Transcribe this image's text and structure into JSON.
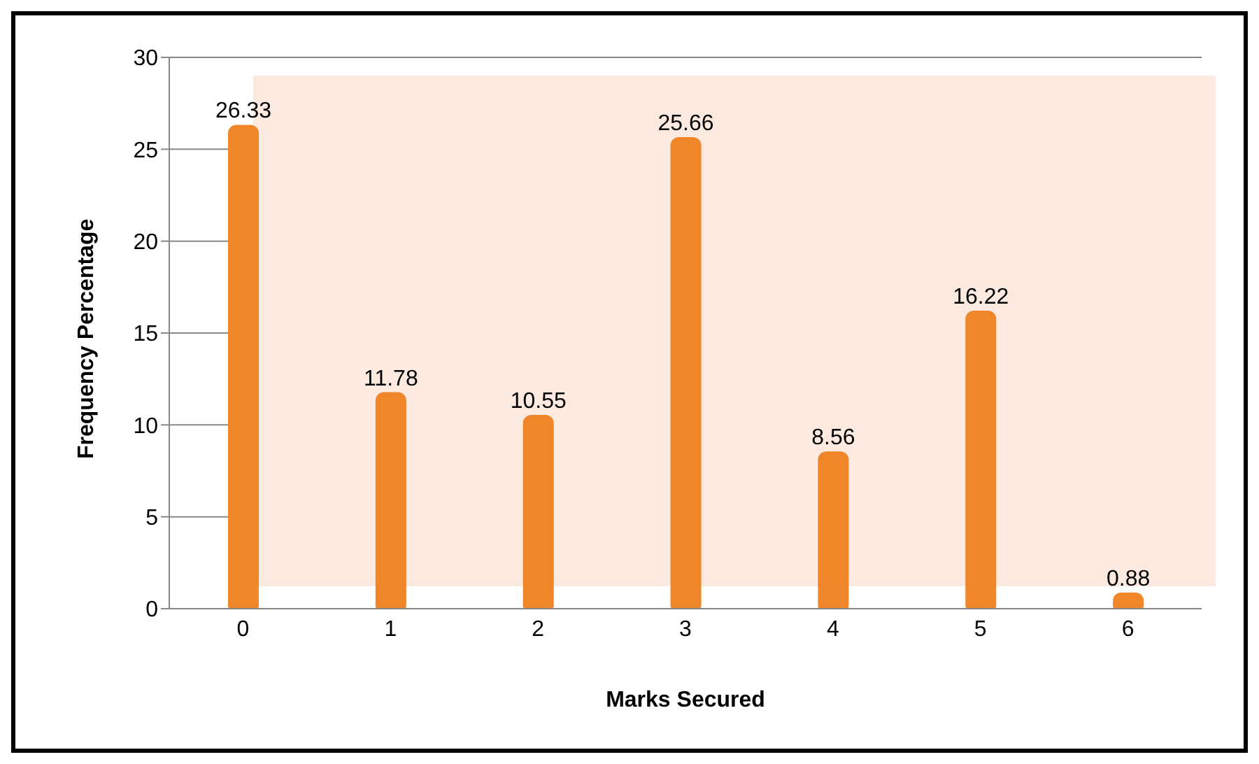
{
  "chart_data": {
    "type": "bar",
    "xlabel": "Marks Secured",
    "ylabel": "Frequency Percentage",
    "categories": [
      "0",
      "1",
      "2",
      "3",
      "4",
      "5",
      "6"
    ],
    "values": [
      26.33,
      11.78,
      10.55,
      25.66,
      8.56,
      16.22,
      0.88
    ],
    "color": "#f0862a",
    "ylim": [
      0,
      30
    ],
    "yticks": [
      0,
      5,
      10,
      15,
      20,
      25,
      30
    ],
    "grid": "y",
    "data_labels": true
  }
}
